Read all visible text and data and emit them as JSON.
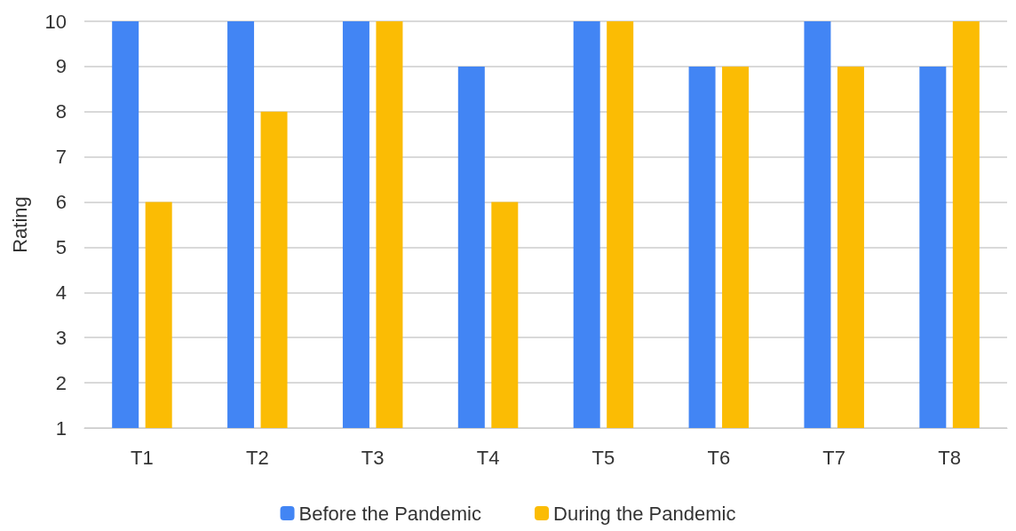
{
  "chart_data": {
    "type": "bar",
    "ylabel": "Rating",
    "categories": [
      "T1",
      "T2",
      "T3",
      "T4",
      "T5",
      "T6",
      "T7",
      "T8"
    ],
    "series": [
      {
        "name": "Before the Pandemic",
        "color": "#4285f4",
        "values": [
          10,
          10,
          10,
          9,
          10,
          9,
          10,
          9
        ]
      },
      {
        "name": "During the Pandemic",
        "color": "#fbbc04",
        "values": [
          6,
          8,
          10,
          6,
          10,
          9,
          9,
          10
        ]
      }
    ],
    "ylim": [
      1,
      10
    ],
    "yticks": [
      1,
      2,
      3,
      4,
      5,
      6,
      7,
      8,
      9,
      10
    ],
    "grid": "y",
    "legend": "bottom"
  }
}
